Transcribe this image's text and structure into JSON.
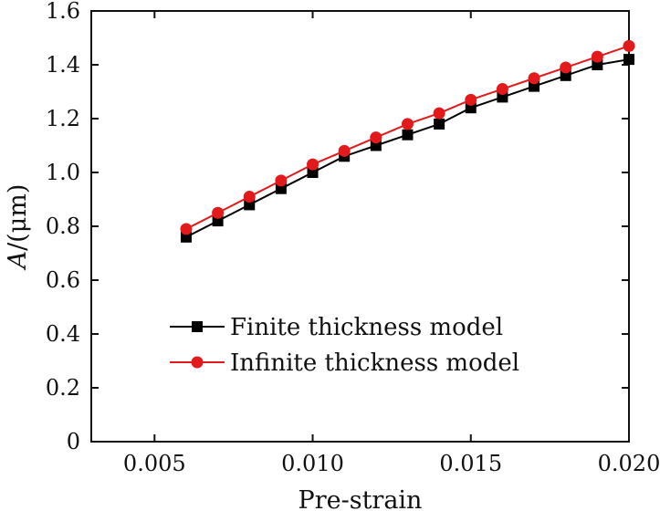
{
  "chart_data": {
    "type": "line",
    "title": "",
    "xlabel": "Pre-strain",
    "ylabel_italic": "A",
    "ylabel_unit": "/(μm)",
    "xlim": [
      0.003,
      0.02
    ],
    "ylim": [
      0,
      1.6
    ],
    "x_ticks": [
      0.005,
      0.01,
      0.015,
      0.02
    ],
    "x_tick_labels": [
      "0.005",
      "0.010",
      "0.015",
      "0.020"
    ],
    "y_ticks": [
      0,
      0.2,
      0.4,
      0.6,
      0.8,
      1.0,
      1.2,
      1.4,
      1.6
    ],
    "y_tick_labels": [
      "0",
      "0.2",
      "0.4",
      "0.6",
      "0.8",
      "1.0",
      "1.2",
      "1.4",
      "1.6"
    ],
    "grid": false,
    "legend_position": "lower-center",
    "x": [
      0.006,
      0.007,
      0.008,
      0.009,
      0.01,
      0.011,
      0.012,
      0.013,
      0.014,
      0.015,
      0.016,
      0.017,
      0.018,
      0.019,
      0.02
    ],
    "series": [
      {
        "name": "Finite thickness model",
        "color": "#000000",
        "marker": "square",
        "values": [
          0.76,
          0.82,
          0.88,
          0.94,
          1.0,
          1.06,
          1.1,
          1.14,
          1.18,
          1.24,
          1.28,
          1.32,
          1.36,
          1.4,
          1.42
        ]
      },
      {
        "name": "Infinite thickness model",
        "color": "#e31a1c",
        "marker": "circle",
        "values": [
          0.79,
          0.85,
          0.91,
          0.97,
          1.03,
          1.08,
          1.13,
          1.18,
          1.22,
          1.27,
          1.31,
          1.35,
          1.39,
          1.43,
          1.47
        ]
      }
    ]
  }
}
